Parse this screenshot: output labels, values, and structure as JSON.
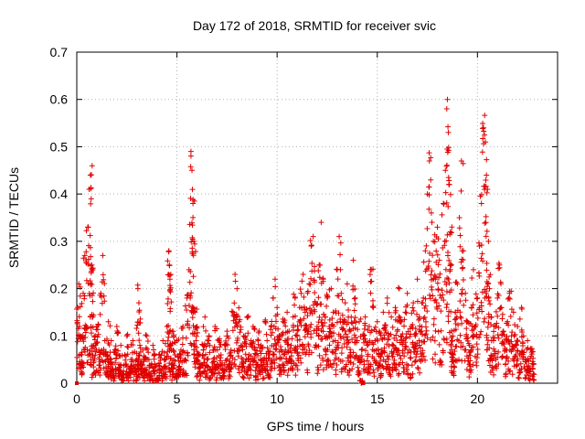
{
  "chart_data": {
    "type": "scatter",
    "title": "Day 172 of 2018, SRMTID for receiver svic",
    "xlabel": "GPS time / hours",
    "ylabel": "SRMTID / TECUs",
    "xlim": [
      0,
      24
    ],
    "ylim": [
      0,
      0.7
    ],
    "xticks": [
      0,
      5,
      10,
      15,
      20
    ],
    "xtick_labels": [
      "0",
      "5",
      "10",
      "15",
      "20"
    ],
    "yticks": [
      0,
      0.1,
      0.2,
      0.3,
      0.4,
      0.5,
      0.6,
      0.7
    ],
    "ytick_labels": [
      "0",
      "0.1",
      "0.2",
      "0.3",
      "0.4",
      "0.5",
      "0.6",
      "0.7"
    ],
    "grid": true,
    "marker": "+",
    "color": "#e00000",
    "series": [
      {
        "name": "svic",
        "x": [
          0.05,
          0.1,
          0.18,
          0.25,
          0.32,
          0.4,
          0.48,
          0.55,
          0.62,
          0.68,
          0.72,
          0.75,
          0.78,
          0.85,
          0.92,
          1.0,
          1.1,
          1.2,
          1.3,
          1.4,
          1.5,
          1.58,
          1.65,
          1.72,
          1.8,
          1.9,
          2.0,
          2.1,
          2.2,
          2.3,
          2.4,
          2.5,
          2.6,
          2.7,
          2.8,
          2.9,
          3.0,
          3.05,
          3.1,
          3.15,
          3.2,
          3.3,
          3.4,
          3.5,
          3.6,
          3.7,
          3.8,
          3.9,
          4.0,
          4.1,
          4.2,
          4.3,
          4.4,
          4.5,
          4.6,
          4.62,
          4.65,
          4.7,
          4.75,
          4.8,
          4.9,
          5.0,
          5.1,
          5.2,
          5.3,
          5.4,
          5.5,
          5.6,
          5.7,
          5.75,
          5.8,
          5.85,
          5.9,
          5.95,
          6.0,
          6.1,
          6.2,
          6.3,
          6.4,
          6.5,
          6.6,
          6.7,
          6.8,
          6.9,
          7.0,
          7.1,
          7.2,
          7.3,
          7.4,
          7.5,
          7.6,
          7.7,
          7.8,
          7.9,
          8.0,
          8.1,
          8.2,
          8.3,
          8.4,
          8.5,
          8.6,
          8.7,
          8.8,
          8.9,
          9.0,
          9.1,
          9.2,
          9.3,
          9.4,
          9.5,
          9.6,
          9.7,
          9.8,
          9.9,
          10.0,
          10.1,
          10.2,
          10.3,
          10.4,
          10.5,
          10.6,
          10.7,
          10.8,
          10.9,
          11.0,
          11.1,
          11.2,
          11.3,
          11.4,
          11.5,
          11.6,
          11.7,
          11.8,
          11.9,
          12.0,
          12.1,
          12.2,
          12.3,
          12.4,
          12.5,
          12.6,
          12.7,
          12.8,
          12.9,
          13.0,
          13.1,
          13.2,
          13.3,
          13.4,
          13.5,
          13.6,
          13.7,
          13.8,
          13.9,
          14.0,
          14.1,
          14.2,
          14.3,
          14.4,
          14.5,
          14.6,
          14.7,
          14.8,
          14.9,
          15.0,
          15.1,
          15.2,
          15.3,
          15.4,
          15.5,
          15.6,
          15.7,
          15.8,
          15.9,
          16.0,
          16.1,
          16.2,
          16.3,
          16.4,
          16.5,
          16.6,
          16.7,
          16.8,
          16.9,
          17.0,
          17.1,
          17.2,
          17.3,
          17.4,
          17.5,
          17.6,
          17.7,
          17.8,
          17.9,
          18.0,
          18.1,
          18.2,
          18.3,
          18.4,
          18.5,
          18.55,
          18.6,
          18.65,
          18.7,
          18.75,
          18.8,
          18.9,
          19.0,
          19.1,
          19.2,
          19.3,
          19.4,
          19.5,
          19.6,
          19.7,
          19.8,
          19.9,
          20.0,
          20.1,
          20.2,
          20.3,
          20.4,
          20.45,
          20.5,
          20.55,
          20.6,
          20.7,
          20.8,
          20.9,
          21.0,
          21.1,
          21.2,
          21.3,
          21.4,
          21.5,
          21.6,
          21.7,
          21.8,
          21.9,
          22.0,
          22.1,
          22.2,
          22.3,
          22.4,
          22.5,
          22.6,
          22.7,
          22.8
        ],
        "y": [
          0.16,
          0.21,
          0.1,
          0.06,
          0.19,
          0.27,
          0.12,
          0.33,
          0.41,
          0.44,
          0.39,
          0.25,
          0.14,
          0.08,
          0.1,
          0.12,
          0.07,
          0.19,
          0.27,
          0.09,
          0.06,
          0.13,
          0.05,
          0.09,
          0.03,
          0.07,
          0.12,
          0.04,
          0.08,
          0.02,
          0.06,
          0.1,
          0.03,
          0.05,
          0.09,
          0.03,
          0.05,
          0.2,
          0.17,
          0.08,
          0.04,
          0.07,
          0.03,
          0.1,
          0.05,
          0.02,
          0.08,
          0.04,
          0.01,
          0.06,
          0.03,
          0.09,
          0.05,
          0.12,
          0.28,
          0.25,
          0.22,
          0.08,
          0.04,
          0.11,
          0.06,
          0.09,
          0.03,
          0.07,
          0.12,
          0.05,
          0.18,
          0.24,
          0.49,
          0.45,
          0.38,
          0.3,
          0.15,
          0.09,
          0.12,
          0.06,
          0.04,
          0.08,
          0.14,
          0.05,
          0.1,
          0.03,
          0.07,
          0.12,
          0.04,
          0.09,
          0.06,
          0.03,
          0.08,
          0.11,
          0.04,
          0.07,
          0.15,
          0.23,
          0.2,
          0.13,
          0.08,
          0.05,
          0.1,
          0.14,
          0.06,
          0.09,
          0.12,
          0.07,
          0.04,
          0.11,
          0.08,
          0.05,
          0.13,
          0.09,
          0.06,
          0.12,
          0.18,
          0.22,
          0.16,
          0.1,
          0.07,
          0.13,
          0.09,
          0.15,
          0.11,
          0.08,
          0.14,
          0.18,
          0.1,
          0.13,
          0.19,
          0.23,
          0.15,
          0.11,
          0.21,
          0.29,
          0.31,
          0.17,
          0.12,
          0.25,
          0.34,
          0.22,
          0.14,
          0.18,
          0.12,
          0.2,
          0.15,
          0.09,
          0.24,
          0.31,
          0.19,
          0.13,
          0.17,
          0.21,
          0.11,
          0.14,
          0.26,
          0.18,
          0.09,
          0.13,
          0.0,
          0.1,
          0.14,
          0.08,
          0.12,
          0.24,
          0.16,
          0.09,
          0.13,
          0.11,
          0.07,
          0.15,
          0.12,
          0.18,
          0.1,
          0.14,
          0.08,
          0.16,
          0.11,
          0.2,
          0.13,
          0.09,
          0.15,
          0.19,
          0.07,
          0.12,
          0.17,
          0.1,
          0.22,
          0.14,
          0.11,
          0.18,
          0.28,
          0.4,
          0.47,
          0.36,
          0.3,
          0.22,
          0.33,
          0.26,
          0.18,
          0.38,
          0.45,
          0.6,
          0.53,
          0.42,
          0.32,
          0.25,
          0.09,
          0.06,
          0.15,
          0.21,
          0.35,
          0.47,
          0.28,
          0.19,
          0.13,
          0.08,
          0.16,
          0.24,
          0.12,
          0.18,
          0.29,
          0.38,
          0.54,
          0.51,
          0.44,
          0.41,
          0.3,
          0.2,
          0.14,
          0.09,
          0.12,
          0.18,
          0.25,
          0.16,
          0.11,
          0.07,
          0.13,
          0.19,
          0.1,
          0.15,
          0.08,
          0.12,
          0.06,
          0.16,
          0.1,
          0.05,
          0.09,
          0.03,
          0.07,
          0.04
        ]
      }
    ],
    "baseline_markers_x": [
      0.0,
      14.3
    ]
  }
}
